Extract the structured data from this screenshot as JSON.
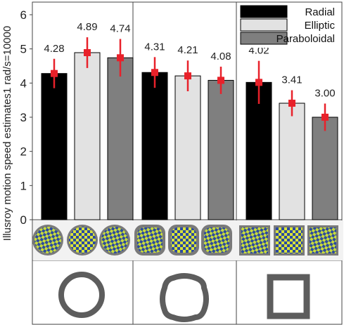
{
  "chart_data": {
    "type": "bar",
    "ylabel": "Illusroy motion speed estimates1 rad/s=10000",
    "ylim": [
      0,
      6.5
    ],
    "yticks": [
      "0",
      "1",
      "2",
      "3",
      "4",
      "5",
      "6"
    ],
    "ytick_values": [
      0,
      1,
      2,
      3,
      4,
      5,
      6
    ],
    "legend_position": "top-right",
    "series": [
      {
        "name": "Radial",
        "color": "#000000"
      },
      {
        "name": "Elliptic",
        "color": "#e2e2e2"
      },
      {
        "name": "Paraboloidal",
        "color": "#7f7f7f"
      }
    ],
    "groups": [
      {
        "values": [
          4.28,
          4.89,
          4.74
        ],
        "labels": [
          "4.28",
          "4.89",
          "4.74"
        ],
        "error": [
          0.43,
          0.45,
          0.55
        ],
        "image_shape": "circle"
      },
      {
        "values": [
          4.31,
          4.21,
          4.08
        ],
        "labels": [
          "4.31",
          "4.21",
          "4.08"
        ],
        "error": [
          0.45,
          0.45,
          0.4
        ],
        "image_shape": "rounded-square"
      },
      {
        "values": [
          4.02,
          3.41,
          3.0
        ],
        "labels": [
          "4.02",
          "3.41",
          "3.00"
        ],
        "error": [
          0.63,
          0.38,
          0.4
        ],
        "image_shape": "square"
      }
    ],
    "error_bar_color": "#e8212a",
    "grid": false
  }
}
